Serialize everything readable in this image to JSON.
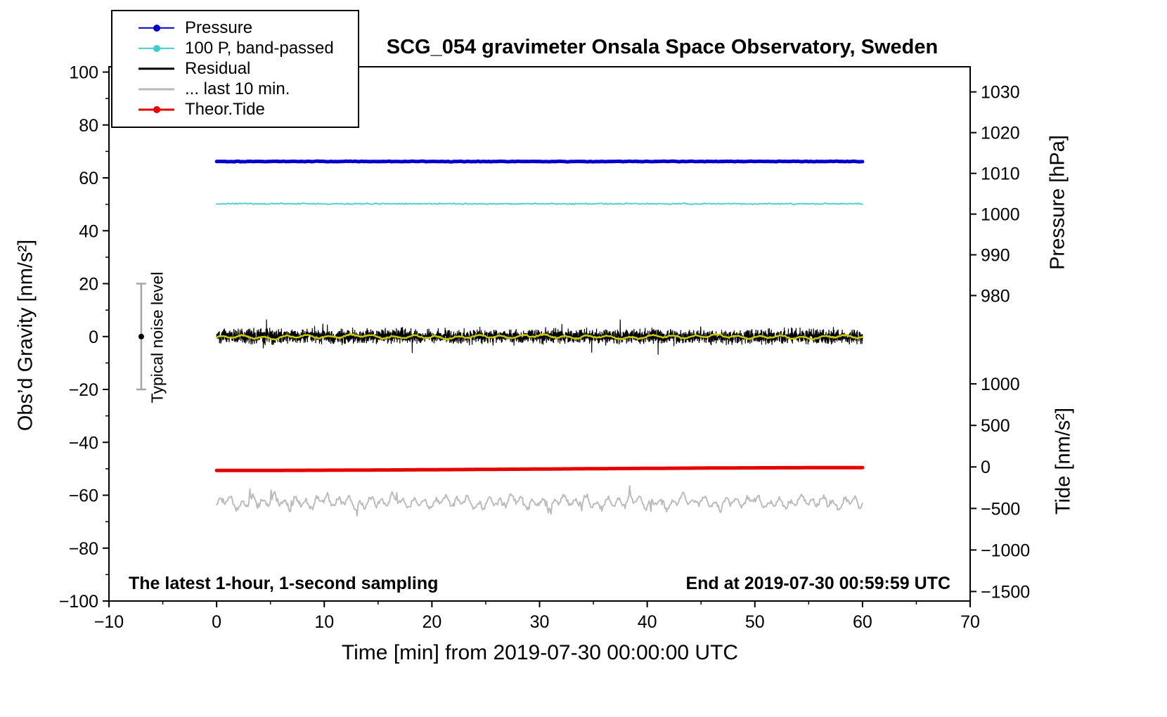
{
  "annotations": {
    "bottom_left": "The latest 1-hour, 1-second sampling",
    "bottom_right": "End at 2019-07-30 00:59:59 UTC"
  },
  "legend": [
    {
      "label": "Pressure",
      "color": "#0000cd",
      "marker": true,
      "line_width": 2.5
    },
    {
      "label": "100 P, band-passed",
      "color": "#3fcccc",
      "marker": true,
      "line_width": 2.5
    },
    {
      "label": "Residual",
      "color": "#000000",
      "marker": false,
      "line_width": 3.5
    },
    {
      "label": "... last 10 min.",
      "color": "#b9b9b9",
      "marker": false,
      "line_width": 3
    },
    {
      "label": "Theor.Tide",
      "color": "#e60000",
      "marker": true,
      "line_width": 3
    }
  ],
  "chart_data": {
    "type": "line",
    "title": "SCG_054 gravimeter Onsala Space Observatory, Sweden",
    "xlabel": "Time [min] from 2019-07-30 00:00:00 UTC",
    "ylabel_left": "Obs’d Gravity [nm/s²]",
    "ylabel_right_pressure": "Pressure [hPa]",
    "ylabel_right_tide": "Tide [nm/s²]",
    "xlim": [
      -10,
      70
    ],
    "ylim_gravity": [
      -100,
      102
    ],
    "x_minor_step": 5,
    "y_minor_step": 10,
    "grid": false,
    "x_ticks": [
      {
        "v": -10,
        "label": "−10"
      },
      {
        "v": 0,
        "label": "0"
      },
      {
        "v": 10,
        "label": "10"
      },
      {
        "v": 20,
        "label": "20"
      },
      {
        "v": 30,
        "label": "30"
      },
      {
        "v": 40,
        "label": "40"
      },
      {
        "v": 50,
        "label": "50"
      },
      {
        "v": 60,
        "label": "60"
      },
      {
        "v": 70,
        "label": "70"
      }
    ],
    "y_ticks_gravity": [
      {
        "v": -100,
        "label": "−100"
      },
      {
        "v": -80,
        "label": "−80"
      },
      {
        "v": -60,
        "label": "−60"
      },
      {
        "v": -40,
        "label": "−40"
      },
      {
        "v": -20,
        "label": "−20"
      },
      {
        "v": 0,
        "label": "0"
      },
      {
        "v": 20,
        "label": "20"
      },
      {
        "v": 40,
        "label": "40"
      },
      {
        "v": 60,
        "label": "60"
      },
      {
        "v": 80,
        "label": "80"
      },
      {
        "v": 100,
        "label": "100"
      }
    ],
    "y_ticks_pressure": [
      {
        "hpa": 1030,
        "gravity": 92.5,
        "label": "1030"
      },
      {
        "hpa": 1020,
        "gravity": 77.1,
        "label": "1020"
      },
      {
        "hpa": 1010,
        "gravity": 61.7,
        "label": "1010"
      },
      {
        "hpa": 1000,
        "gravity": 46.3,
        "label": "1000"
      },
      {
        "hpa": 990,
        "gravity": 30.9,
        "label": "990"
      },
      {
        "hpa": 980,
        "gravity": 15.5,
        "label": "980"
      }
    ],
    "y_ticks_tide": [
      {
        "tide": 1000,
        "gravity": -17.9,
        "label": "1000"
      },
      {
        "tide": 500,
        "gravity": -33.6,
        "label": "500"
      },
      {
        "tide": 0,
        "gravity": -49.3,
        "label": "0"
      },
      {
        "tide": -500,
        "gravity": -65.0,
        "label": "−500"
      },
      {
        "tide": -1000,
        "gravity": -80.7,
        "label": "−1000"
      },
      {
        "tide": -1500,
        "gravity": -96.4,
        "label": "−1500"
      }
    ],
    "noise_bar": {
      "x": -7,
      "y_center": 0,
      "y_half_range": 20,
      "label": "Typical noise level"
    },
    "series": [
      {
        "name": "Pressure",
        "color": "#0000cd",
        "width": 5,
        "x_start": 0,
        "x_end": 60,
        "value_hpa": 1013,
        "gen": {
          "kind": "flat",
          "level": 66.2,
          "noise": 0.06,
          "n": 300,
          "seed": 101
        }
      },
      {
        "name": "100 P, band-passed",
        "color": "#55d0d0",
        "width": 2,
        "x_start": 0,
        "x_end": 60,
        "gen": {
          "kind": "flat",
          "level": 50.2,
          "noise": 0.12,
          "n": 500,
          "seed": 202
        }
      },
      {
        "name": "... last 10 min.",
        "color": "#bcbcbc",
        "width": 2,
        "x_start": 0,
        "x_end": 60,
        "gen": {
          "kind": "wavy",
          "level": -62.6,
          "components": [
            [
              1.4,
              1.0
            ],
            [
              1.0,
              0.45
            ],
            [
              0.7,
              0.18
            ]
          ],
          "noise": 0.5,
          "spike_p": 0.012,
          "spike_amp": 3.0,
          "n": 700,
          "seed": 303
        }
      },
      {
        "name": "Theor.Tide",
        "color": "#e60000",
        "width": 5,
        "x_start": 0,
        "x_end": 60,
        "tide_value_range": [
          -15,
          15
        ],
        "gen": {
          "kind": "tide",
          "level": -50.1,
          "amp": 0.55,
          "n": 200,
          "seed": 7
        }
      },
      {
        "name": "Residual",
        "color": "#000000",
        "width": 1.2,
        "x_start": 0,
        "x_end": 60,
        "gen": {
          "kind": "noise",
          "level": 0,
          "sigma": 1.25,
          "spike_p": 0.005,
          "spike_amp": 4.0,
          "n": 3600,
          "seed": 404
        }
      },
      {
        "name": "Residual smoothed",
        "color": "#c8c800",
        "width": 2.5,
        "x_start": 0,
        "x_end": 60,
        "gen": {
          "kind": "wavy",
          "level": -0.1,
          "components": [
            [
              0.45,
              0.5
            ],
            [
              0.3,
              0.18
            ],
            [
              0.22,
              0.06
            ]
          ],
          "noise": 0.12,
          "n": 720,
          "seed": 505
        }
      }
    ]
  }
}
